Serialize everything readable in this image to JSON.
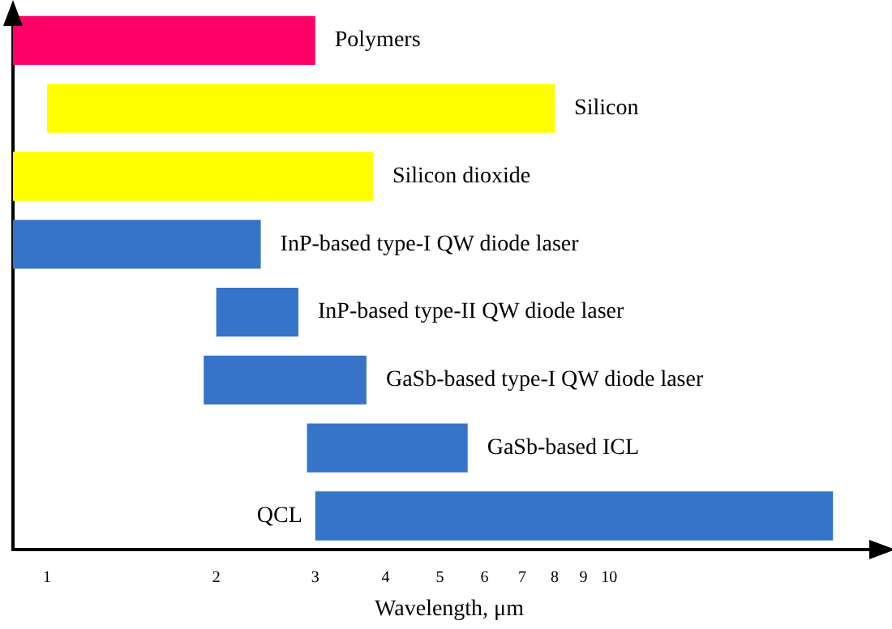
{
  "chart_data": {
    "type": "bar",
    "orientation": "horizontal",
    "xlabel": "Wavelength, μm",
    "log": "x",
    "grid": false,
    "legend": false,
    "tick_labels": "x",
    "categories": [
      "Polymers",
      "Silicon",
      "Silicon dioxide",
      "InP-based type-I QW diode laser",
      "InP-based type-II QW diode laser",
      "GaSb-based type-I QW diode laser",
      "GaSb-based ICL",
      "QCL"
    ],
    "base": [
      0.87,
      1,
      0.87,
      0.87,
      2,
      1.9,
      2.9,
      3
    ],
    "values": [
      2.13,
      7,
      2.93,
      1.53,
      0.8,
      1.8,
      2.7,
      22
    ],
    "colors": [
      "#ff0066",
      "#ffff00",
      "#ffff00",
      "#3574c8",
      "#3574c8",
      "#3574c8",
      "#3574c8",
      "#3574c8"
    ],
    "xlim": [
      0.87,
      31
    ],
    "xticks": [
      1,
      2,
      3,
      4,
      5,
      6,
      7,
      8,
      9,
      10
    ]
  }
}
